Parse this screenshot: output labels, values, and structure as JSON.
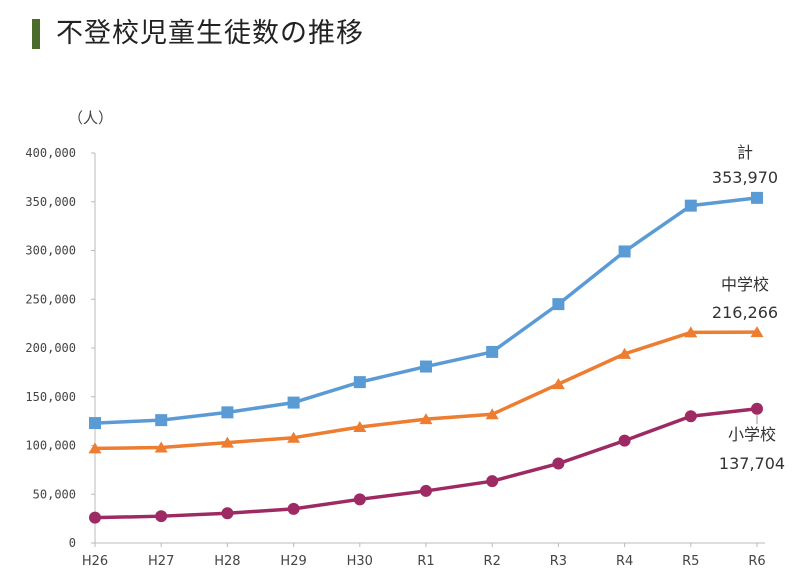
{
  "title": "不登校児童生徒数の推移",
  "chart_data": {
    "type": "line",
    "ylabel": "（人）",
    "xlabel": "",
    "categories": [
      "H26",
      "H27",
      "H28",
      "H29",
      "H30",
      "R1",
      "R2",
      "R3",
      "R4",
      "R5",
      "R6"
    ],
    "ylim": [
      0,
      400000
    ],
    "yticks": [
      "0",
      "50,000",
      "100,000",
      "150,000",
      "200,000",
      "250,000",
      "300,000",
      "350,000",
      "400,000"
    ],
    "ytick_values": [
      0,
      50000,
      100000,
      150000,
      200000,
      250000,
      300000,
      350000,
      400000
    ],
    "grid": false,
    "series": [
      {
        "name": "計",
        "color": "#5b9bd5",
        "marker": "square",
        "values": [
          123000,
          126000,
          134000,
          144000,
          165000,
          181000,
          196000,
          245000,
          299000,
          346000,
          353970
        ],
        "end_label": "353,970"
      },
      {
        "name": "中学校",
        "color": "#ed7d31",
        "marker": "triangle",
        "values": [
          97000,
          98000,
          103000,
          108000,
          119000,
          127000,
          132000,
          163000,
          194000,
          216000,
          216266
        ],
        "end_label": "216,266"
      },
      {
        "name": "小学校",
        "color": "#9e2a63",
        "marker": "circle",
        "values": [
          26000,
          27500,
          30500,
          35000,
          44800,
          53400,
          63400,
          81500,
          105000,
          130000,
          137704
        ],
        "end_label": "137,704"
      }
    ]
  }
}
